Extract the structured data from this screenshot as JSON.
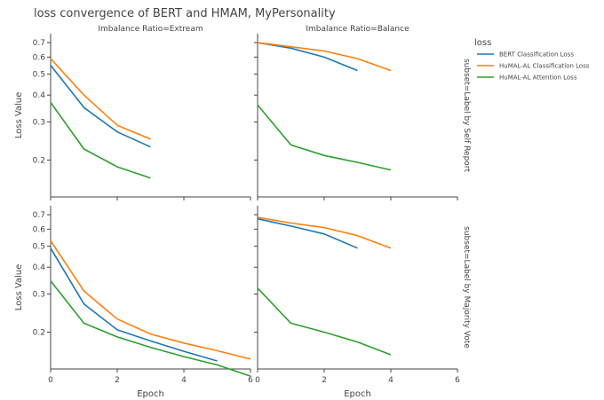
{
  "chart_data": {
    "type": "line",
    "title": "loss convergence of BERT and HMAM, MyPersonality",
    "facets": {
      "columns": [
        "Imbalance Ratio=Extream",
        "Imbalance Ratio=Balance"
      ],
      "rows": [
        "subset=Label by Self Report",
        "subset=Label by Majority Vote"
      ]
    },
    "xlabel": "Epoch",
    "ylabel": "Loss Value",
    "x_ticks": [
      "0",
      "2",
      "4",
      "6"
    ],
    "y_ticks": [
      "0.2",
      "0.3",
      "0.4",
      "0.5",
      "0.6",
      "0.7"
    ],
    "y_scale": "log",
    "xlim": [
      0,
      6
    ],
    "ylim": [
      0.135,
      0.77
    ],
    "legend": {
      "title": "loss",
      "placement": "right"
    },
    "series_style": [
      {
        "name": "BERT Classification Loss",
        "color": "#1f77b4"
      },
      {
        "name": "HuMAL-AL Classification Loss",
        "color": "#ff7f0e"
      },
      {
        "name": "HuMAL-AL Attention Loss",
        "color": "#2ca02c"
      }
    ],
    "panels": [
      {
        "row": 0,
        "col": 0,
        "series": [
          {
            "name": "BERT Classification Loss",
            "x": [
              0,
              1,
              2,
              3
            ],
            "values": [
              0.55,
              0.35,
              0.27,
              0.23
            ]
          },
          {
            "name": "HuMAL-AL Classification Loss",
            "x": [
              0,
              1,
              2,
              3
            ],
            "values": [
              0.59,
              0.4,
              0.29,
              0.25
            ]
          },
          {
            "name": "HuMAL-AL Attention Loss",
            "x": [
              0,
              1,
              2,
              3
            ],
            "values": [
              0.37,
              0.225,
              0.186,
              0.165
            ]
          }
        ]
      },
      {
        "row": 0,
        "col": 1,
        "series": [
          {
            "name": "BERT Classification Loss",
            "x": [
              0,
              1,
              2,
              3
            ],
            "values": [
              0.7,
              0.66,
              0.6,
              0.52
            ]
          },
          {
            "name": "HuMAL-AL Classification Loss",
            "x": [
              0,
              1,
              2,
              3,
              4
            ],
            "values": [
              0.7,
              0.67,
              0.64,
              0.59,
              0.52
            ]
          },
          {
            "name": "HuMAL-AL Attention Loss",
            "x": [
              0,
              1,
              2,
              3,
              4
            ],
            "values": [
              0.36,
              0.235,
              0.21,
              0.195,
              0.18
            ]
          }
        ]
      },
      {
        "row": 1,
        "col": 0,
        "series": [
          {
            "name": "BERT Classification Loss",
            "x": [
              0,
              1,
              2,
              3,
              4,
              5
            ],
            "values": [
              0.49,
              0.27,
              0.205,
              0.182,
              0.163,
              0.147
            ]
          },
          {
            "name": "HuMAL-AL Classification Loss",
            "x": [
              0,
              1,
              2,
              3,
              4,
              5,
              6
            ],
            "values": [
              0.53,
              0.31,
              0.23,
              0.196,
              0.178,
              0.164,
              0.15
            ]
          },
          {
            "name": "HuMAL-AL Attention Loss",
            "x": [
              0,
              1,
              2,
              3,
              4,
              5,
              6
            ],
            "values": [
              0.345,
              0.22,
              0.19,
              0.17,
              0.154,
              0.141,
              0.125
            ]
          }
        ]
      },
      {
        "row": 1,
        "col": 1,
        "series": [
          {
            "name": "BERT Classification Loss",
            "x": [
              0,
              1,
              2,
              3
            ],
            "values": [
              0.67,
              0.62,
              0.57,
              0.49
            ]
          },
          {
            "name": "HuMAL-AL Classification Loss",
            "x": [
              0,
              1,
              2,
              3,
              4
            ],
            "values": [
              0.68,
              0.64,
              0.61,
              0.56,
              0.49
            ]
          },
          {
            "name": "HuMAL-AL Attention Loss",
            "x": [
              0,
              1,
              2,
              3,
              4
            ],
            "values": [
              0.32,
              0.22,
              0.2,
              0.18,
              0.157
            ]
          }
        ]
      }
    ]
  }
}
